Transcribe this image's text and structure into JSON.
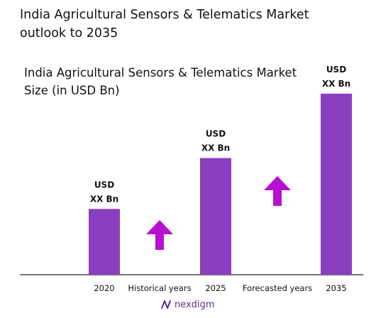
{
  "page": {
    "title": "India Agricultural Sensors & Telematics Market outlook to 2035",
    "logo_text": "nexdigm"
  },
  "chart_data": {
    "type": "bar",
    "title": "India Agricultural Sensors & Telematics Market Size (in USD Bn)",
    "categories": [
      "2020",
      "2025",
      "2035"
    ],
    "values": [
      93,
      165,
      256
    ],
    "data_labels": [
      [
        "USD",
        "XX Bn"
      ],
      [
        "USD",
        "XX Bn"
      ],
      [
        "USD",
        "XX Bn"
      ]
    ],
    "ylim": [
      0,
      260
    ],
    "bar_color": "#8a3fc0",
    "annotations": [
      {
        "label": "Historical years",
        "between": [
          "2020",
          "2025"
        ]
      },
      {
        "label": "Forecasted years",
        "between": [
          "2025",
          "2035"
        ]
      }
    ],
    "arrow_color": "#b80fd0",
    "grid": false,
    "legend": "none"
  }
}
